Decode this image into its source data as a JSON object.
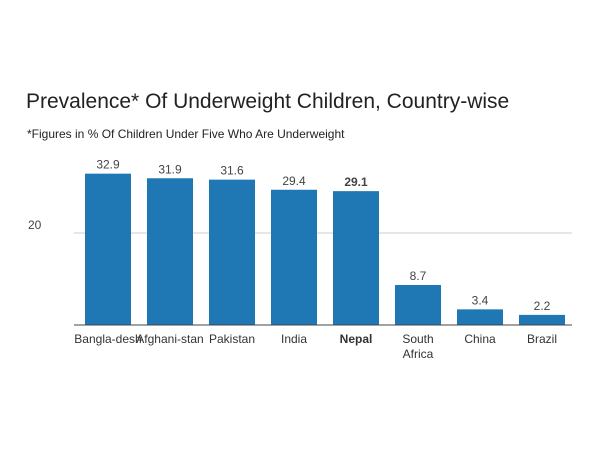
{
  "chart_data": {
    "type": "bar",
    "title": "Prevalence* Of Underweight Children, Country-wise",
    "subtitle": "*Figures in % Of Children Under Five Who Are Underweight",
    "categories": [
      "Bangla-desh",
      "Afghani-stan",
      "Pakistan",
      "India",
      "Nepal",
      "South Africa",
      "China",
      "Brazil"
    ],
    "category_lines": [
      [
        "Bangla-desh"
      ],
      [
        "Afghani-stan"
      ],
      [
        "Pakistan"
      ],
      [
        "India"
      ],
      [
        "Nepal"
      ],
      [
        "South",
        "Africa"
      ],
      [
        "China"
      ],
      [
        "Brazil"
      ]
    ],
    "values": [
      32.9,
      31.9,
      31.6,
      29.4,
      29.1,
      8.7,
      3.4,
      2.2
    ],
    "value_labels": [
      "32.9",
      "31.9",
      "31.6",
      "29.4",
      "29.1",
      "8.7",
      "3.4",
      "2.2"
    ],
    "highlight": "Nepal",
    "yticks": [
      20
    ],
    "ylim": [
      0,
      40
    ],
    "xlabel": "",
    "ylabel": "",
    "grid": true,
    "bar_color": "#1f77b4"
  }
}
